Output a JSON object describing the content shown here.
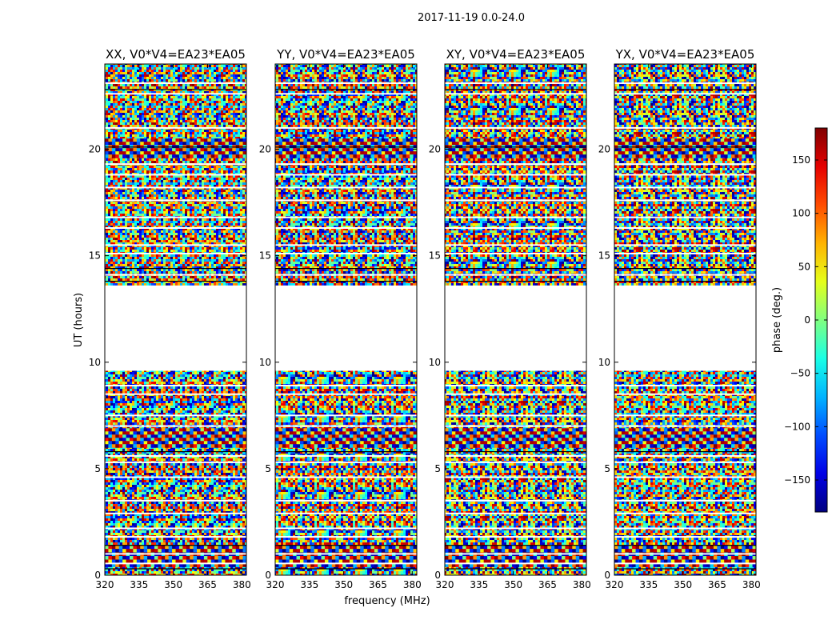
{
  "figure": {
    "suptitle": "2017-11-19 0.0-24.0",
    "xlabel": "frequency (MHz)",
    "ylabel": "UT (hours)",
    "colorbar": {
      "label": "phase (deg.)",
      "range": [
        -180,
        180
      ],
      "ticks": [
        150,
        100,
        50,
        0,
        -50,
        -100,
        -150
      ],
      "tick_labels": [
        "150",
        "100",
        "50",
        "0",
        "−50",
        "−100",
        "−150"
      ],
      "colormap": "jet"
    }
  },
  "chart_data": [
    {
      "type": "heatmap",
      "title": "XX, V0*V4=EA23*EA05",
      "xlim": [
        320,
        382
      ],
      "ylim": [
        0,
        24
      ],
      "xticks": [
        320,
        335,
        350,
        365,
        380
      ],
      "yticks": [
        0,
        5,
        10,
        15,
        20
      ],
      "z_range": [
        -180,
        180
      ],
      "no_data_ranges_hours": [
        [
          9.6,
          13.6
        ]
      ]
    },
    {
      "type": "heatmap",
      "title": "YY, V0*V4=EA23*EA05",
      "xlim": [
        320,
        382
      ],
      "ylim": [
        0,
        24
      ],
      "xticks": [
        320,
        335,
        350,
        365,
        380
      ],
      "yticks": [
        0,
        5,
        10,
        15,
        20
      ],
      "z_range": [
        -180,
        180
      ],
      "no_data_ranges_hours": [
        [
          9.6,
          13.6
        ]
      ]
    },
    {
      "type": "heatmap",
      "title": "XY, V0*V4=EA23*EA05",
      "xlim": [
        320,
        382
      ],
      "ylim": [
        0,
        24
      ],
      "xticks": [
        320,
        335,
        350,
        365,
        380
      ],
      "yticks": [
        0,
        5,
        10,
        15,
        20
      ],
      "z_range": [
        -180,
        180
      ],
      "no_data_ranges_hours": [
        [
          9.6,
          13.6
        ]
      ]
    },
    {
      "type": "heatmap",
      "title": "YX, V0*V4=EA23*EA05",
      "xlim": [
        320,
        382
      ],
      "ylim": [
        0,
        24
      ],
      "xticks": [
        320,
        335,
        350,
        365,
        380
      ],
      "yticks": [
        0,
        5,
        10,
        15,
        20
      ],
      "z_range": [
        -180,
        180
      ],
      "no_data_ranges_hours": [
        [
          9.6,
          13.6
        ]
      ]
    }
  ]
}
